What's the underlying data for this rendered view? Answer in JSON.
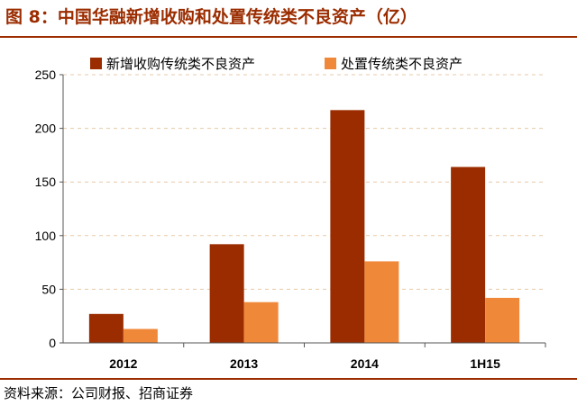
{
  "figure": {
    "title": "图 8：中国华融新增收购和处置传统类不良资产（亿）",
    "source": "资料来源：公司财报、招商证券"
  },
  "colors": {
    "series_1": "#9b2c00",
    "series_2": "#f0883a",
    "rule": "#9b2c00",
    "grid": "#e8c9a8"
  },
  "chart_data": {
    "type": "bar",
    "title": "",
    "xlabel": "",
    "ylabel": "",
    "categories": [
      "2012",
      "2013",
      "2014",
      "1H15"
    ],
    "series": [
      {
        "name": "新增收购传统类不良资产",
        "values": [
          27,
          92,
          217,
          164
        ]
      },
      {
        "name": "处置传统类不良资产",
        "values": [
          13,
          38,
          76,
          42
        ]
      }
    ],
    "ylim": [
      0,
      250
    ],
    "yticks": [
      0,
      50,
      100,
      150,
      200,
      250
    ],
    "grid": true,
    "legend": "top-right"
  }
}
